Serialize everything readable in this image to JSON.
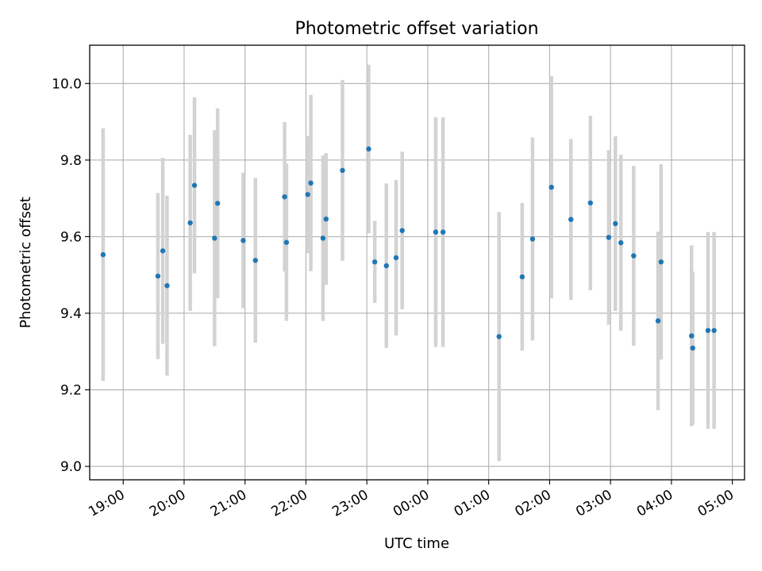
{
  "chart_data": {
    "type": "scatter",
    "title": "Photometric offset variation",
    "xlabel": "UTC time",
    "ylabel": "Photometric offset",
    "x_ticks": [
      "19:00",
      "20:00",
      "21:00",
      "22:00",
      "23:00",
      "00:00",
      "01:00",
      "02:00",
      "03:00",
      "04:00",
      "05:00"
    ],
    "y_ticks": [
      "9.0",
      "9.2",
      "9.4",
      "9.6",
      "9.8",
      "10.0"
    ],
    "x_axis": "time of day (hours since 00:00 of the first night; values after midnight continue past 24)",
    "xlim": [
      18.45,
      29.2
    ],
    "ylim": [
      8.965,
      10.1
    ],
    "grid": true,
    "colors": {
      "marker": "#1f77b4",
      "error_bar": "#d3d3d3",
      "grid": "#b0b0b0",
      "axes": "#000000"
    },
    "points": [
      {
        "x": 18.67,
        "y": 9.553,
        "yerr": 0.33
      },
      {
        "x": 19.57,
        "y": 9.497,
        "yerr": 0.217
      },
      {
        "x": 19.65,
        "y": 9.563,
        "yerr": 0.243
      },
      {
        "x": 19.72,
        "y": 9.472,
        "yerr": 0.235
      },
      {
        "x": 20.1,
        "y": 9.636,
        "yerr": 0.23
      },
      {
        "x": 20.17,
        "y": 9.734,
        "yerr": 0.23
      },
      {
        "x": 20.5,
        "y": 9.596,
        "yerr": 0.282
      },
      {
        "x": 20.55,
        "y": 9.687,
        "yerr": 0.248
      },
      {
        "x": 20.97,
        "y": 9.59,
        "yerr": 0.177
      },
      {
        "x": 21.17,
        "y": 9.538,
        "yerr": 0.215
      },
      {
        "x": 21.65,
        "y": 9.704,
        "yerr": 0.195
      },
      {
        "x": 21.68,
        "y": 9.585,
        "yerr": 0.205
      },
      {
        "x": 22.03,
        "y": 9.71,
        "yerr": 0.153
      },
      {
        "x": 22.08,
        "y": 9.74,
        "yerr": 0.23
      },
      {
        "x": 22.28,
        "y": 9.596,
        "yerr": 0.216
      },
      {
        "x": 22.33,
        "y": 9.646,
        "yerr": 0.172
      },
      {
        "x": 22.6,
        "y": 9.773,
        "yerr": 0.236
      },
      {
        "x": 23.03,
        "y": 9.829,
        "yerr": 0.22
      },
      {
        "x": 23.13,
        "y": 9.534,
        "yerr": 0.107
      },
      {
        "x": 23.32,
        "y": 9.524,
        "yerr": 0.215
      },
      {
        "x": 23.48,
        "y": 9.545,
        "yerr": 0.203
      },
      {
        "x": 23.58,
        "y": 9.616,
        "yerr": 0.206
      },
      {
        "x": 24.13,
        "y": 9.612,
        "yerr": 0.3
      },
      {
        "x": 24.25,
        "y": 9.612,
        "yerr": 0.3
      },
      {
        "x": 25.17,
        "y": 9.339,
        "yerr": 0.325
      },
      {
        "x": 25.55,
        "y": 9.495,
        "yerr": 0.193
      },
      {
        "x": 25.72,
        "y": 9.594,
        "yerr": 0.265
      },
      {
        "x": 26.03,
        "y": 9.729,
        "yerr": 0.29
      },
      {
        "x": 26.35,
        "y": 9.645,
        "yerr": 0.21
      },
      {
        "x": 26.67,
        "y": 9.688,
        "yerr": 0.228
      },
      {
        "x": 26.97,
        "y": 9.598,
        "yerr": 0.228
      },
      {
        "x": 27.08,
        "y": 9.634,
        "yerr": 0.228
      },
      {
        "x": 27.17,
        "y": 9.584,
        "yerr": 0.23
      },
      {
        "x": 27.38,
        "y": 9.55,
        "yerr": 0.235
      },
      {
        "x": 27.78,
        "y": 9.38,
        "yerr": 0.233
      },
      {
        "x": 27.83,
        "y": 9.534,
        "yerr": 0.255
      },
      {
        "x": 28.33,
        "y": 9.341,
        "yerr": 0.236
      },
      {
        "x": 28.35,
        "y": 9.309,
        "yerr": 0.2
      },
      {
        "x": 28.6,
        "y": 9.355,
        "yerr": 0.257
      },
      {
        "x": 28.7,
        "y": 9.355,
        "yerr": 0.257
      }
    ]
  }
}
